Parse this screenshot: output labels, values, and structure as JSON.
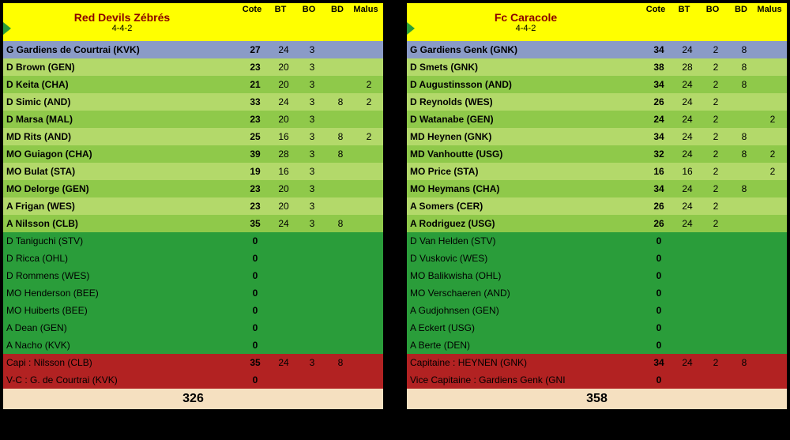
{
  "column_labels": [
    "Cote",
    "BT",
    "BO",
    "BD",
    "Malus"
  ],
  "colors": {
    "background": "#000000",
    "header_bg": "#ffff00",
    "team_name": "#8b0000",
    "gk_row": "#8a9bc7",
    "main_odd": "#b3d96a",
    "main_even": "#8fc94a",
    "sub_row": "#2a9d3a",
    "captain_row": "#b22222",
    "total_row": "#f5e0c0"
  },
  "teams": [
    {
      "name": "Red Devils Zébrés",
      "formation": "4-4-2",
      "total": 326,
      "starters": [
        {
          "label": "G Gardiens de Courtrai (KVK)",
          "cote": 27,
          "bt": 24,
          "bo": 3,
          "bd": "",
          "malus": ""
        },
        {
          "label": "D Brown (GEN)",
          "cote": 23,
          "bt": 20,
          "bo": 3,
          "bd": "",
          "malus": ""
        },
        {
          "label": "D Keita (CHA)",
          "cote": 21,
          "bt": 20,
          "bo": 3,
          "bd": "",
          "malus": "2"
        },
        {
          "label": "D Simic (AND)",
          "cote": 33,
          "bt": 24,
          "bo": 3,
          "bd": "8",
          "malus": "2"
        },
        {
          "label": "D Marsa (MAL)",
          "cote": 23,
          "bt": 20,
          "bo": 3,
          "bd": "",
          "malus": ""
        },
        {
          "label": "MD Rits (AND)",
          "cote": 25,
          "bt": 16,
          "bo": 3,
          "bd": "8",
          "malus": "2"
        },
        {
          "label": "MO Guiagon (CHA)",
          "cote": 39,
          "bt": 28,
          "bo": 3,
          "bd": "8",
          "malus": ""
        },
        {
          "label": "MO Bulat (STA)",
          "cote": 19,
          "bt": 16,
          "bo": 3,
          "bd": "",
          "malus": ""
        },
        {
          "label": "MO Delorge (GEN)",
          "cote": 23,
          "bt": 20,
          "bo": 3,
          "bd": "",
          "malus": ""
        },
        {
          "label": "A Frigan (WES)",
          "cote": 23,
          "bt": 20,
          "bo": 3,
          "bd": "",
          "malus": ""
        },
        {
          "label": "A Nilsson (CLB)",
          "cote": 35,
          "bt": 24,
          "bo": 3,
          "bd": "8",
          "malus": ""
        }
      ],
      "subs": [
        {
          "label": "D Taniguchi (STV)",
          "cote": 0
        },
        {
          "label": "D Ricca (OHL)",
          "cote": 0
        },
        {
          "label": "D Rommens (WES)",
          "cote": 0
        },
        {
          "label": "MO Henderson (BEE)",
          "cote": 0
        },
        {
          "label": "MO Huiberts (BEE)",
          "cote": 0
        },
        {
          "label": "A Dean (GEN)",
          "cote": 0
        },
        {
          "label": "A Nacho (KVK)",
          "cote": 0
        }
      ],
      "captain": {
        "label": "Capi : Nilsson (CLB)",
        "cote": 35,
        "bt": 24,
        "bo": 3,
        "bd": 8,
        "malus": ""
      },
      "vice": {
        "label": "V-C : G. de Courtrai (KVK)",
        "cote": 0
      }
    },
    {
      "name": "Fc Caracole",
      "formation": "4-4-2",
      "total": 358,
      "starters": [
        {
          "label": "G Gardiens Genk (GNK)",
          "cote": 34,
          "bt": 24,
          "bo": 2,
          "bd": "8",
          "malus": ""
        },
        {
          "label": "D Smets (GNK)",
          "cote": 38,
          "bt": 28,
          "bo": 2,
          "bd": "8",
          "malus": ""
        },
        {
          "label": "D Augustinsson (AND)",
          "cote": 34,
          "bt": 24,
          "bo": 2,
          "bd": "8",
          "malus": ""
        },
        {
          "label": "D Reynolds (WES)",
          "cote": 26,
          "bt": 24,
          "bo": 2,
          "bd": "",
          "malus": ""
        },
        {
          "label": "D Watanabe (GEN)",
          "cote": 24,
          "bt": 24,
          "bo": 2,
          "bd": "",
          "malus": "2"
        },
        {
          "label": "MD Heynen (GNK)",
          "cote": 34,
          "bt": 24,
          "bo": 2,
          "bd": "8",
          "malus": ""
        },
        {
          "label": "MD Vanhoutte (USG)",
          "cote": 32,
          "bt": 24,
          "bo": 2,
          "bd": "8",
          "malus": "2"
        },
        {
          "label": "MO Price (STA)",
          "cote": 16,
          "bt": 16,
          "bo": 2,
          "bd": "",
          "malus": "2"
        },
        {
          "label": "MO Heymans (CHA)",
          "cote": 34,
          "bt": 24,
          "bo": 2,
          "bd": "8",
          "malus": ""
        },
        {
          "label": "A Somers (CER)",
          "cote": 26,
          "bt": 24,
          "bo": 2,
          "bd": "",
          "malus": ""
        },
        {
          "label": "A Rodriguez (USG)",
          "cote": 26,
          "bt": 24,
          "bo": 2,
          "bd": "",
          "malus": ""
        }
      ],
      "subs": [
        {
          "label": "D Van Helden (STV)",
          "cote": 0
        },
        {
          "label": "D Vuskovic (WES)",
          "cote": 0
        },
        {
          "label": "MO Balikwisha (OHL)",
          "cote": 0
        },
        {
          "label": "MO Verschaeren (AND)",
          "cote": 0
        },
        {
          "label": "A Gudjohnsen (GEN)",
          "cote": 0
        },
        {
          "label": "A Eckert (USG)",
          "cote": 0
        },
        {
          "label": "A Berte (DEN)",
          "cote": 0
        }
      ],
      "captain": {
        "label": "Capitaine : HEYNEN (GNK)",
        "cote": 34,
        "bt": 24,
        "bo": 2,
        "bd": 8,
        "malus": ""
      },
      "vice": {
        "label": "Vice Capitaine : Gardiens Genk (GNI",
        "cote": 0
      }
    }
  ]
}
